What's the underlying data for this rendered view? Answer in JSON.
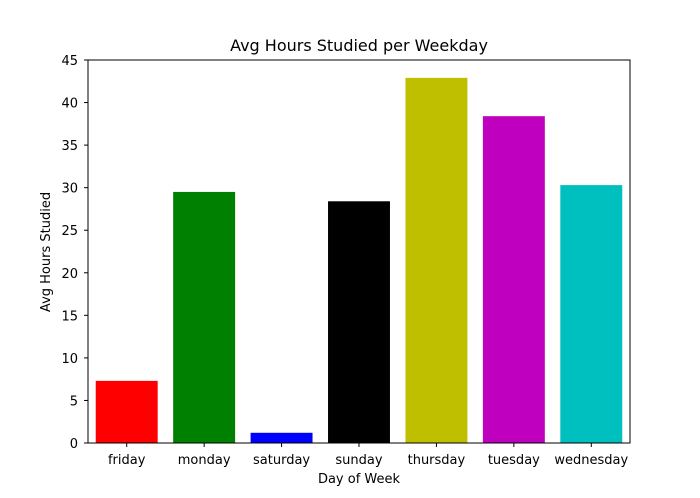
{
  "chart_data": {
    "type": "bar",
    "title": "Avg Hours Studied per Weekday",
    "xlabel": "Day of Week",
    "ylabel": "Avg Hours Studied",
    "categories": [
      "friday",
      "monday",
      "saturday",
      "sunday",
      "thursday",
      "tuesday",
      "wednesday"
    ],
    "values": [
      7.3,
      29.5,
      1.2,
      28.4,
      42.9,
      38.4,
      30.3
    ],
    "colors": [
      "#ff0000",
      "#008000",
      "#0000ff",
      "#000000",
      "#bfbf00",
      "#bf00bf",
      "#00bfbf"
    ],
    "ylim": [
      0,
      45
    ],
    "yticks": [
      0,
      5,
      10,
      15,
      20,
      25,
      30,
      35,
      40,
      45
    ],
    "grid": false,
    "legend": "none"
  }
}
